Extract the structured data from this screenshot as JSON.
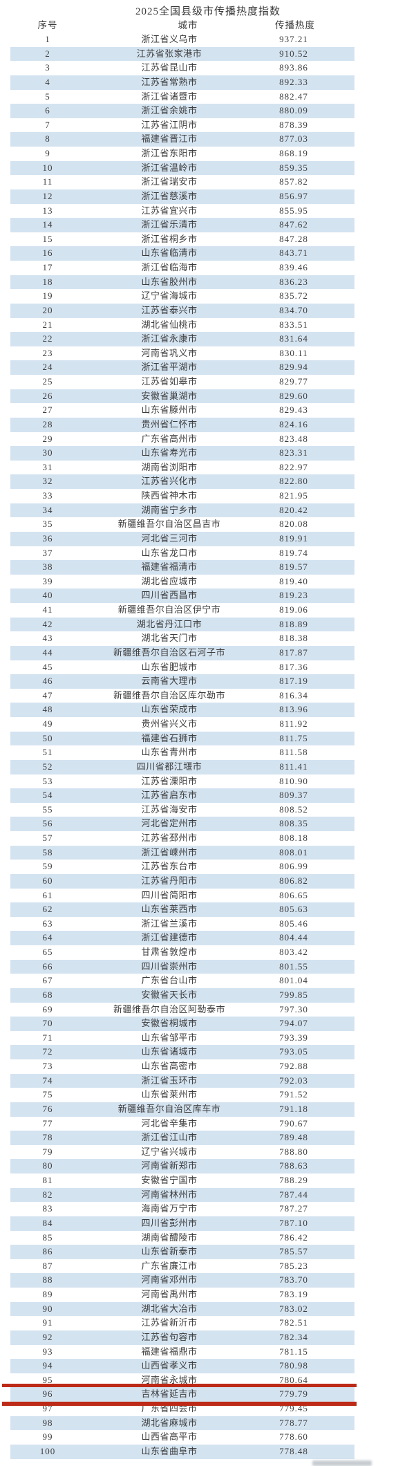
{
  "title": "2025全国县级市传播热度指数",
  "table": {
    "headers": {
      "rank": "序号",
      "city": "城市",
      "heat": "传播热度"
    },
    "stripe_color": "#d4e3f0",
    "highlight_color": "#bd2a17",
    "highlighted_rank": 96,
    "rows": [
      {
        "rank": 1,
        "city": "浙江省义乌市",
        "heat": "937.21"
      },
      {
        "rank": 2,
        "city": "江苏省张家港市",
        "heat": "910.52"
      },
      {
        "rank": 3,
        "city": "江苏省昆山市",
        "heat": "893.86"
      },
      {
        "rank": 4,
        "city": "江苏省常熟市",
        "heat": "892.33"
      },
      {
        "rank": 5,
        "city": "浙江省诸暨市",
        "heat": "882.47"
      },
      {
        "rank": 6,
        "city": "浙江省余姚市",
        "heat": "880.09"
      },
      {
        "rank": 7,
        "city": "江苏省江阴市",
        "heat": "878.39"
      },
      {
        "rank": 8,
        "city": "福建省晋江市",
        "heat": "877.03"
      },
      {
        "rank": 9,
        "city": "浙江省东阳市",
        "heat": "868.19"
      },
      {
        "rank": 10,
        "city": "浙江省温岭市",
        "heat": "859.35"
      },
      {
        "rank": 11,
        "city": "浙江省瑞安市",
        "heat": "857.82"
      },
      {
        "rank": 12,
        "city": "浙江省慈溪市",
        "heat": "856.97"
      },
      {
        "rank": 13,
        "city": "江苏省宜兴市",
        "heat": "855.95"
      },
      {
        "rank": 14,
        "city": "浙江省乐清市",
        "heat": "847.62"
      },
      {
        "rank": 15,
        "city": "浙江省桐乡市",
        "heat": "847.28"
      },
      {
        "rank": 16,
        "city": "山东省临清市",
        "heat": "843.71"
      },
      {
        "rank": 17,
        "city": "浙江省临海市",
        "heat": "839.46"
      },
      {
        "rank": 18,
        "city": "山东省胶州市",
        "heat": "836.23"
      },
      {
        "rank": 19,
        "city": "辽宁省海城市",
        "heat": "835.72"
      },
      {
        "rank": 20,
        "city": "江苏省泰兴市",
        "heat": "834.70"
      },
      {
        "rank": 21,
        "city": "湖北省仙桃市",
        "heat": "833.51"
      },
      {
        "rank": 22,
        "city": "浙江省永康市",
        "heat": "831.64"
      },
      {
        "rank": 23,
        "city": "河南省巩义市",
        "heat": "830.11"
      },
      {
        "rank": 24,
        "city": "浙江省平湖市",
        "heat": "829.94"
      },
      {
        "rank": 25,
        "city": "江苏省如皋市",
        "heat": "829.77"
      },
      {
        "rank": 26,
        "city": "安徽省巢湖市",
        "heat": "829.60"
      },
      {
        "rank": 27,
        "city": "山东省滕州市",
        "heat": "829.43"
      },
      {
        "rank": 28,
        "city": "贵州省仁怀市",
        "heat": "824.16"
      },
      {
        "rank": 29,
        "city": "广东省高州市",
        "heat": "823.48"
      },
      {
        "rank": 30,
        "city": "山东省寿光市",
        "heat": "823.31"
      },
      {
        "rank": 31,
        "city": "湖南省浏阳市",
        "heat": "822.97"
      },
      {
        "rank": 32,
        "city": "江苏省兴化市",
        "heat": "822.80"
      },
      {
        "rank": 33,
        "city": "陕西省神木市",
        "heat": "821.95"
      },
      {
        "rank": 34,
        "city": "湖南省宁乡市",
        "heat": "820.42"
      },
      {
        "rank": 35,
        "city": "新疆维吾尔自治区昌吉市",
        "heat": "820.08"
      },
      {
        "rank": 36,
        "city": "河北省三河市",
        "heat": "819.91"
      },
      {
        "rank": 37,
        "city": "山东省龙口市",
        "heat": "819.74"
      },
      {
        "rank": 38,
        "city": "福建省福清市",
        "heat": "819.57"
      },
      {
        "rank": 39,
        "city": "湖北省应城市",
        "heat": "819.40"
      },
      {
        "rank": 40,
        "city": "四川省西昌市",
        "heat": "819.23"
      },
      {
        "rank": 41,
        "city": "新疆维吾尔自治区伊宁市",
        "heat": "819.06"
      },
      {
        "rank": 42,
        "city": "湖北省丹江口市",
        "heat": "818.89"
      },
      {
        "rank": 43,
        "city": "湖北省天门市",
        "heat": "818.38"
      },
      {
        "rank": 44,
        "city": "新疆维吾尔自治区石河子市",
        "heat": "817.87"
      },
      {
        "rank": 45,
        "city": "山东省肥城市",
        "heat": "817.36"
      },
      {
        "rank": 46,
        "city": "云南省大理市",
        "heat": "817.19"
      },
      {
        "rank": 47,
        "city": "新疆维吾尔自治区库尔勒市",
        "heat": "816.34"
      },
      {
        "rank": 48,
        "city": "山东省荣成市",
        "heat": "813.96"
      },
      {
        "rank": 49,
        "city": "贵州省兴义市",
        "heat": "811.92"
      },
      {
        "rank": 50,
        "city": "福建省石狮市",
        "heat": "811.75"
      },
      {
        "rank": 51,
        "city": "山东省青州市",
        "heat": "811.58"
      },
      {
        "rank": 52,
        "city": "四川省都江堰市",
        "heat": "811.41"
      },
      {
        "rank": 53,
        "city": "江苏省溧阳市",
        "heat": "810.90"
      },
      {
        "rank": 54,
        "city": "江苏省启东市",
        "heat": "809.37"
      },
      {
        "rank": 55,
        "city": "江苏省海安市",
        "heat": "808.52"
      },
      {
        "rank": 56,
        "city": "河北省定州市",
        "heat": "808.35"
      },
      {
        "rank": 57,
        "city": "江苏省邳州市",
        "heat": "808.18"
      },
      {
        "rank": 58,
        "city": "浙江省嵊州市",
        "heat": "808.01"
      },
      {
        "rank": 59,
        "city": "江苏省东台市",
        "heat": "806.99"
      },
      {
        "rank": 60,
        "city": "江苏省丹阳市",
        "heat": "806.82"
      },
      {
        "rank": 61,
        "city": "四川省简阳市",
        "heat": "806.65"
      },
      {
        "rank": 62,
        "city": "山东省莱西市",
        "heat": "805.63"
      },
      {
        "rank": 63,
        "city": "浙江省兰溪市",
        "heat": "805.46"
      },
      {
        "rank": 64,
        "city": "浙江省建德市",
        "heat": "804.44"
      },
      {
        "rank": 65,
        "city": "甘肃省敦煌市",
        "heat": "803.42"
      },
      {
        "rank": 66,
        "city": "四川省崇州市",
        "heat": "801.55"
      },
      {
        "rank": 67,
        "city": "广东省台山市",
        "heat": "801.04"
      },
      {
        "rank": 68,
        "city": "安徽省天长市",
        "heat": "799.85"
      },
      {
        "rank": 69,
        "city": "新疆维吾尔自治区阿勒泰市",
        "heat": "797.30"
      },
      {
        "rank": 70,
        "city": "安徽省桐城市",
        "heat": "794.07"
      },
      {
        "rank": 71,
        "city": "山东省邹平市",
        "heat": "793.39"
      },
      {
        "rank": 72,
        "city": "山东省诸城市",
        "heat": "793.05"
      },
      {
        "rank": 73,
        "city": "山东省高密市",
        "heat": "792.88"
      },
      {
        "rank": 74,
        "city": "浙江省玉环市",
        "heat": "792.03"
      },
      {
        "rank": 75,
        "city": "山东省莱州市",
        "heat": "791.52"
      },
      {
        "rank": 76,
        "city": "新疆维吾尔自治区库车市",
        "heat": "791.18"
      },
      {
        "rank": 77,
        "city": "河北省辛集市",
        "heat": "790.67"
      },
      {
        "rank": 78,
        "city": "浙江省江山市",
        "heat": "789.48"
      },
      {
        "rank": 79,
        "city": "辽宁省兴城市",
        "heat": "788.80"
      },
      {
        "rank": 80,
        "city": "河南省新郑市",
        "heat": "788.63"
      },
      {
        "rank": 81,
        "city": "安徽省宁国市",
        "heat": "788.29"
      },
      {
        "rank": 82,
        "city": "河南省林州市",
        "heat": "787.44"
      },
      {
        "rank": 83,
        "city": "海南省万宁市",
        "heat": "787.27"
      },
      {
        "rank": 84,
        "city": "四川省彭州市",
        "heat": "787.10"
      },
      {
        "rank": 85,
        "city": "湖南省醴陵市",
        "heat": "786.42"
      },
      {
        "rank": 86,
        "city": "山东省新泰市",
        "heat": "785.57"
      },
      {
        "rank": 87,
        "city": "广东省廉江市",
        "heat": "785.23"
      },
      {
        "rank": 88,
        "city": "河南省邓州市",
        "heat": "783.70"
      },
      {
        "rank": 89,
        "city": "河南省禹州市",
        "heat": "783.19"
      },
      {
        "rank": 90,
        "city": "湖北省大冶市",
        "heat": "783.02"
      },
      {
        "rank": 91,
        "city": "江苏省新沂市",
        "heat": "782.51"
      },
      {
        "rank": 92,
        "city": "江苏省句容市",
        "heat": "782.34"
      },
      {
        "rank": 93,
        "city": "福建省福鼎市",
        "heat": "781.15"
      },
      {
        "rank": 94,
        "city": "山西省孝义市",
        "heat": "780.98"
      },
      {
        "rank": 95,
        "city": "河南省永城市",
        "heat": "780.64"
      },
      {
        "rank": 96,
        "city": "吉林省延吉市",
        "heat": "779.79"
      },
      {
        "rank": 97,
        "city": "广东省四会市",
        "heat": "779.45"
      },
      {
        "rank": 98,
        "city": "湖北省麻城市",
        "heat": "778.77"
      },
      {
        "rank": 99,
        "city": "山西省高平市",
        "heat": "778.60"
      },
      {
        "rank": 100,
        "city": "山东省曲阜市",
        "heat": "778.48"
      }
    ]
  }
}
